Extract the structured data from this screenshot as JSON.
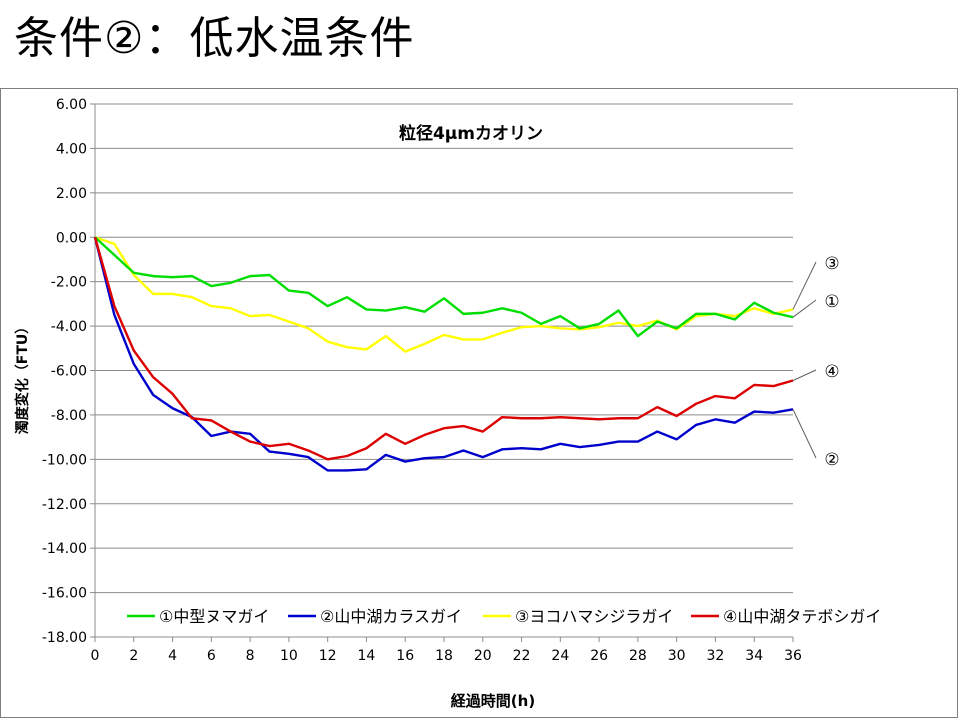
{
  "slide": {
    "title": "条件②：低水温条件"
  },
  "chart_data": {
    "type": "line",
    "title": "粒径4μmカオリン",
    "xlabel": "経過時間(h)",
    "ylabel": "濁度変化（FTU）",
    "ylim": [
      -18,
      6
    ],
    "yticks": [
      "6.00",
      "4.00",
      "2.00",
      "0.00",
      "-2.00",
      "-4.00",
      "-6.00",
      "-8.00",
      "-10.00",
      "-12.00",
      "-14.00",
      "-16.00",
      "-18.00"
    ],
    "xlim": [
      0,
      36
    ],
    "xticks": [
      "0",
      "2",
      "4",
      "6",
      "8",
      "10",
      "12",
      "14",
      "16",
      "18",
      "20",
      "22",
      "24",
      "26",
      "28",
      "30",
      "32",
      "34",
      "36"
    ],
    "grid": "horizontal",
    "legend_position": "bottom-inside",
    "x": [
      0,
      1,
      2,
      3,
      4,
      5,
      6,
      7,
      8,
      9,
      10,
      11,
      12,
      13,
      14,
      15,
      16,
      17,
      18,
      19,
      20,
      21,
      22,
      23,
      24,
      25,
      26,
      27,
      28,
      29,
      30,
      31,
      32,
      33,
      34,
      35,
      36
    ],
    "series": [
      {
        "name": "①中型ヌマガイ",
        "color": "#00dd00",
        "callout": "①",
        "values": [
          0,
          -0.8,
          -1.6,
          -1.75,
          -1.8,
          -1.75,
          -2.2,
          -2.05,
          -1.75,
          -1.7,
          -2.4,
          -2.5,
          -3.1,
          -2.7,
          -3.25,
          -3.3,
          -3.15,
          -3.35,
          -2.75,
          -3.45,
          -3.4,
          -3.2,
          -3.4,
          -3.9,
          -3.55,
          -4.1,
          -3.9,
          -3.3,
          -4.45,
          -3.8,
          -4.1,
          -3.45,
          -3.45,
          -3.7,
          -2.95,
          -3.4,
          -3.6
        ]
      },
      {
        "name": "②山中湖カラスガイ",
        "color": "#0000cc",
        "callout": "②",
        "values": [
          0,
          -3.5,
          -5.7,
          -7.1,
          -7.7,
          -8.1,
          -8.95,
          -8.75,
          -8.85,
          -9.65,
          -9.75,
          -9.9,
          -10.5,
          -10.5,
          -10.45,
          -9.8,
          -10.1,
          -9.95,
          -9.9,
          -9.6,
          -9.9,
          -9.55,
          -9.5,
          -9.55,
          -9.3,
          -9.45,
          -9.35,
          -9.2,
          -9.2,
          -8.75,
          -9.1,
          -8.45,
          -8.2,
          -8.35,
          -7.85,
          -7.9,
          -7.75
        ]
      },
      {
        "name": "③ヨコハマシジラガイ",
        "color": "#ffff00",
        "callout": "③",
        "values": [
          0,
          -0.3,
          -1.7,
          -2.55,
          -2.55,
          -2.7,
          -3.1,
          -3.2,
          -3.55,
          -3.5,
          -3.8,
          -4.1,
          -4.7,
          -4.95,
          -5.05,
          -4.45,
          -5.15,
          -4.8,
          -4.4,
          -4.6,
          -4.6,
          -4.3,
          -4.05,
          -4.0,
          -4.1,
          -4.15,
          -4.05,
          -3.85,
          -4.0,
          -3.75,
          -4.15,
          -3.55,
          -3.45,
          -3.55,
          -3.2,
          -3.45,
          -3.25
        ]
      },
      {
        "name": "④山中湖タテボシガイ",
        "color": "#dd0000",
        "callout": "④",
        "values": [
          0,
          -3.1,
          -5.1,
          -6.3,
          -7.05,
          -8.15,
          -8.25,
          -8.75,
          -9.2,
          -9.4,
          -9.3,
          -9.6,
          -10.0,
          -9.85,
          -9.5,
          -8.85,
          -9.3,
          -8.9,
          -8.6,
          -8.5,
          -8.75,
          -8.1,
          -8.15,
          -8.15,
          -8.1,
          -8.15,
          -8.2,
          -8.15,
          -8.15,
          -7.65,
          -8.05,
          -7.5,
          -7.15,
          -7.25,
          -6.65,
          -6.7,
          -6.45
        ]
      }
    ]
  }
}
